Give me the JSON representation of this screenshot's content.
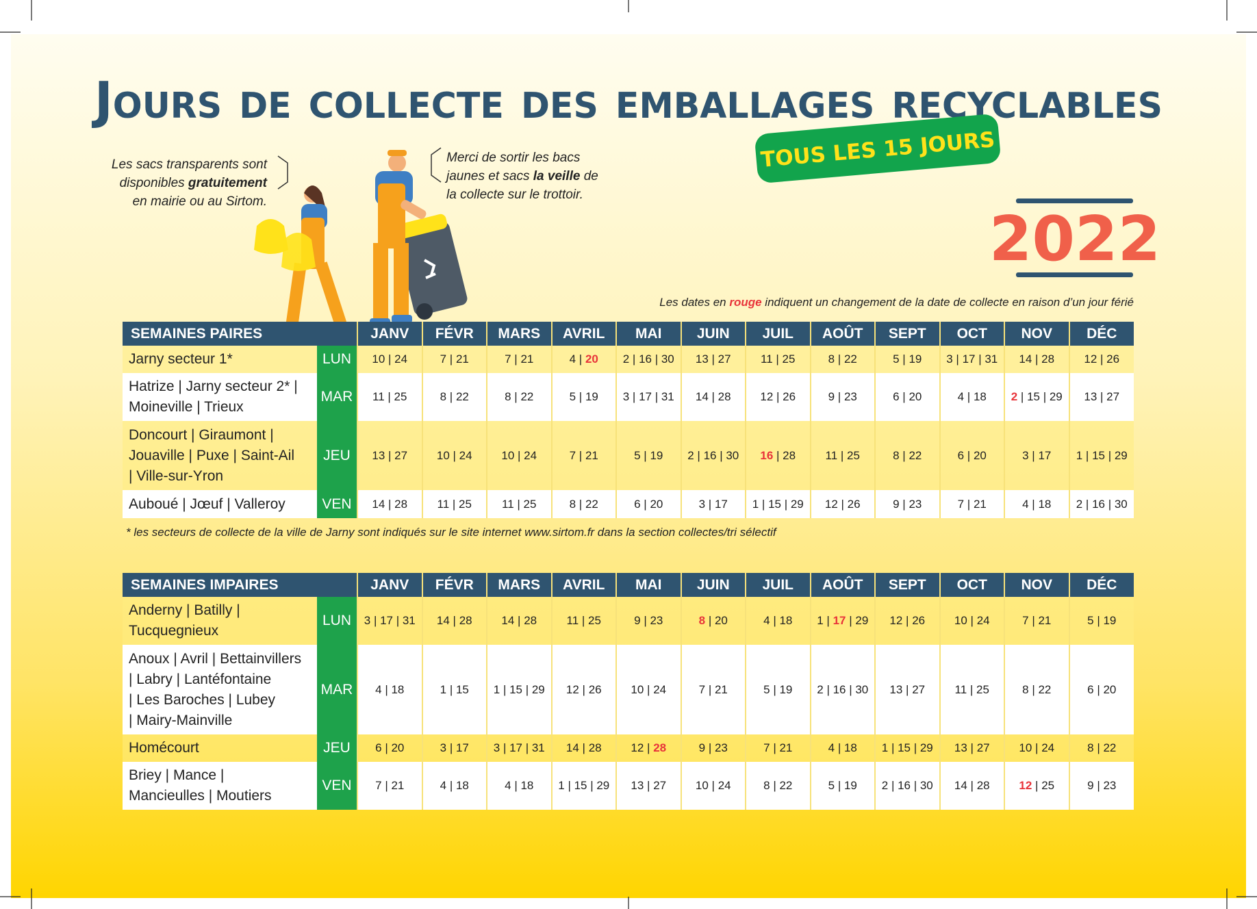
{
  "header": {
    "title": "Jours de collecte des emballages recyclables",
    "badge": "TOUS LES 15 JOURS",
    "year": "2022"
  },
  "left_note": [
    [
      {
        "text": "Les sacs transparents sont"
      }
    ],
    [
      {
        "text": "disponibles "
      },
      {
        "text": "gratuitement",
        "bold": true
      }
    ],
    [
      {
        "text": "en mairie ou au Sirtom."
      }
    ]
  ],
  "right_note": [
    [
      {
        "text": "Merci de sortir les bacs"
      }
    ],
    [
      {
        "text": "jaunes et sacs "
      },
      {
        "text": "la veille",
        "bold": true
      },
      {
        "text": " de"
      }
    ],
    [
      {
        "text": "la collecte sur le trottoir."
      }
    ]
  ],
  "legend": [
    {
      "text": "Les dates en "
    },
    {
      "text": "rouge",
      "bold": true,
      "color": "#e8333a"
    },
    {
      "text": " indiquent un changement de la date de collecte en raison d’un jour férié"
    }
  ],
  "footnote": "* les secteurs de collecte de la ville de Jarny sont indiqués sur le site internet www.sirtom.fr dans la section collectes/tri sélectif",
  "tables": [
    {
      "title": "SEMAINES PAIRES",
      "months": [
        "JANV",
        "FÉVR",
        "MARS",
        "AVRIL",
        "MAI",
        "JUIN",
        "JUIL",
        "AOÛT",
        "SEPT",
        "OCT",
        "NOV",
        "DÉC"
      ],
      "rows": [
        {
          "label": [
            "Jarny secteur 1*"
          ],
          "day": "LUN",
          "cells": [
            "10 | 24",
            "7 | 21",
            "7 | 21",
            [
              {
                "text": "4 | "
              },
              {
                "text": "20",
                "color": "#e8333a"
              }
            ],
            "2 | 16 | 30",
            "13 | 27",
            "11 | 25",
            "8 | 22",
            "5 | 19",
            "3 | 17 | 31",
            "14 | 28",
            "12 | 26"
          ]
        },
        {
          "label": [
            "Hatrize | Jarny secteur 2* |",
            "Moineville | Trieux"
          ],
          "day": "MAR",
          "cells": [
            "11 | 25",
            "8 | 22",
            "8 | 22",
            "5 | 19",
            "3 | 17 | 31",
            "14 | 28",
            "12 | 26",
            "9 | 23",
            "6 | 20",
            "4 | 18",
            [
              {
                "text": "2",
                "color": "#e8333a"
              },
              {
                "text": " | 15 | 29"
              }
            ],
            "13 | 27"
          ]
        },
        {
          "label": [
            "Doncourt | Giraumont |",
            "Jouaville | Puxe | Saint-Ail",
            "| Ville-sur-Yron"
          ],
          "day": "JEU",
          "cells": [
            "13 | 27",
            "10 | 24",
            "10 | 24",
            "7 | 21",
            "5 | 19",
            "2 | 16 | 30",
            [
              {
                "text": "16",
                "color": "#e8333a"
              },
              {
                "text": " | 28"
              }
            ],
            "11 | 25",
            "8 | 22",
            "6 | 20",
            "3 | 17",
            "1 | 15 | 29"
          ]
        },
        {
          "label": [
            "Auboué | Jœuf | Valleroy"
          ],
          "day": "VEN",
          "cells": [
            "14 | 28",
            "11 | 25",
            "11 | 25",
            "8 | 22",
            "6 | 20",
            "3 | 17",
            "1 | 15 | 29",
            "12 | 26",
            "9 | 23",
            "7 | 21",
            "4 | 18",
            "2 | 16 | 30"
          ]
        }
      ]
    },
    {
      "title": "SEMAINES IMPAIRES",
      "months": [
        "JANV",
        "FÉVR",
        "MARS",
        "AVRIL",
        "MAI",
        "JUIN",
        "JUIL",
        "AOÛT",
        "SEPT",
        "OCT",
        "NOV",
        "DÉC"
      ],
      "rows": [
        {
          "label": [
            "Anderny | Batilly |",
            "Tucquegnieux"
          ],
          "day": "LUN",
          "cells": [
            "3 | 17 | 31",
            "14 | 28",
            "14 | 28",
            "11 | 25",
            "9 | 23",
            [
              {
                "text": "8",
                "color": "#e8333a"
              },
              {
                "text": " | 20"
              }
            ],
            "4 | 18",
            [
              {
                "text": "1 | "
              },
              {
                "text": "17",
                "color": "#e8333a"
              },
              {
                "text": " | 29"
              }
            ],
            "12 | 26",
            "10 | 24",
            "7 | 21",
            "5 | 19"
          ]
        },
        {
          "label": [
            "Anoux | Avril | Bettainvillers",
            "| Labry | Lantéfontaine",
            "| Les Baroches | Lubey",
            "| Mairy-Mainville"
          ],
          "day": "MAR",
          "cells": [
            "4 | 18",
            "1 | 15",
            "1 | 15 | 29",
            "12 | 26",
            "10 | 24",
            "7 | 21",
            "5 | 19",
            "2 | 16 | 30",
            "13 | 27",
            "11 | 25",
            "8 | 22",
            "6 | 20"
          ]
        },
        {
          "label": [
            "Homécourt"
          ],
          "day": "JEU",
          "cells": [
            "6 | 20",
            "3 | 17",
            "3 | 17 | 31",
            "14 | 28",
            [
              {
                "text": "12 | "
              },
              {
                "text": "28",
                "color": "#e8333a"
              }
            ],
            "9 | 23",
            "7 | 21",
            "4 | 18",
            "1 | 15 | 29",
            "13 | 27",
            "10 | 24",
            "8 | 22"
          ]
        },
        {
          "label": [
            "Briey | Mance |",
            "Mancieulles | Moutiers"
          ],
          "day": "VEN",
          "cells": [
            "7 | 21",
            "4 | 18",
            "4 | 18",
            "1 | 15 | 29",
            "13 | 27",
            "10 | 24",
            "8 | 22",
            "5 | 19",
            "2 | 16 | 30",
            "14 | 28",
            [
              {
                "text": "12",
                "color": "#e8333a"
              },
              {
                "text": " | 25"
              }
            ],
            "9 | 23"
          ]
        }
      ]
    }
  ]
}
